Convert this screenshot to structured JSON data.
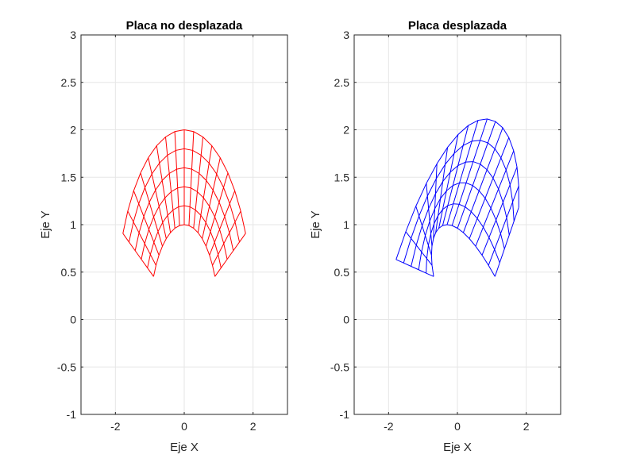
{
  "chart_data": [
    {
      "type": "line",
      "title": "Placa no desplazada",
      "xlabel": "Eje X",
      "ylabel": "Eje Y",
      "xlim": [
        -3,
        3
      ],
      "ylim": [
        -1,
        3
      ],
      "xticks": [
        "-2",
        "0",
        "2"
      ],
      "xtick_values": [
        -2,
        0,
        2
      ],
      "yticks": [
        "-1",
        "-0.5",
        "0",
        "0.5",
        "1",
        "1.5",
        "2",
        "2.5",
        "3"
      ],
      "ytick_values": [
        -1,
        -0.5,
        0,
        0.5,
        1,
        1.5,
        2,
        2.5,
        3
      ],
      "grid": true,
      "color": "#ff0000",
      "mesh": {
        "r_min": 1,
        "r_max": 2,
        "r_divisions": 5,
        "theta_max_rad": 1.1,
        "theta_divisions": 16,
        "displaced": false
      }
    },
    {
      "type": "line",
      "title": "Placa desplazada",
      "xlabel": "Eje X",
      "ylabel": "Eje Y",
      "xlim": [
        -3,
        3
      ],
      "ylim": [
        -1,
        3
      ],
      "xticks": [
        "-2",
        "0",
        "2"
      ],
      "xtick_values": [
        -2,
        0,
        2
      ],
      "yticks": [
        "-1",
        "-0.5",
        "0",
        "0.5",
        "1",
        "1.5",
        "2",
        "2.5",
        "3"
      ],
      "ytick_values": [
        -1,
        -0.5,
        0,
        0.5,
        1,
        1.5,
        2,
        2.5,
        3
      ],
      "grid": true,
      "color": "#0000ff",
      "mesh": {
        "r_min": 1,
        "r_max": 2,
        "r_divisions": 5,
        "theta_max_rad": 1.1,
        "theta_divisions": 16,
        "displaced": true
      }
    }
  ]
}
